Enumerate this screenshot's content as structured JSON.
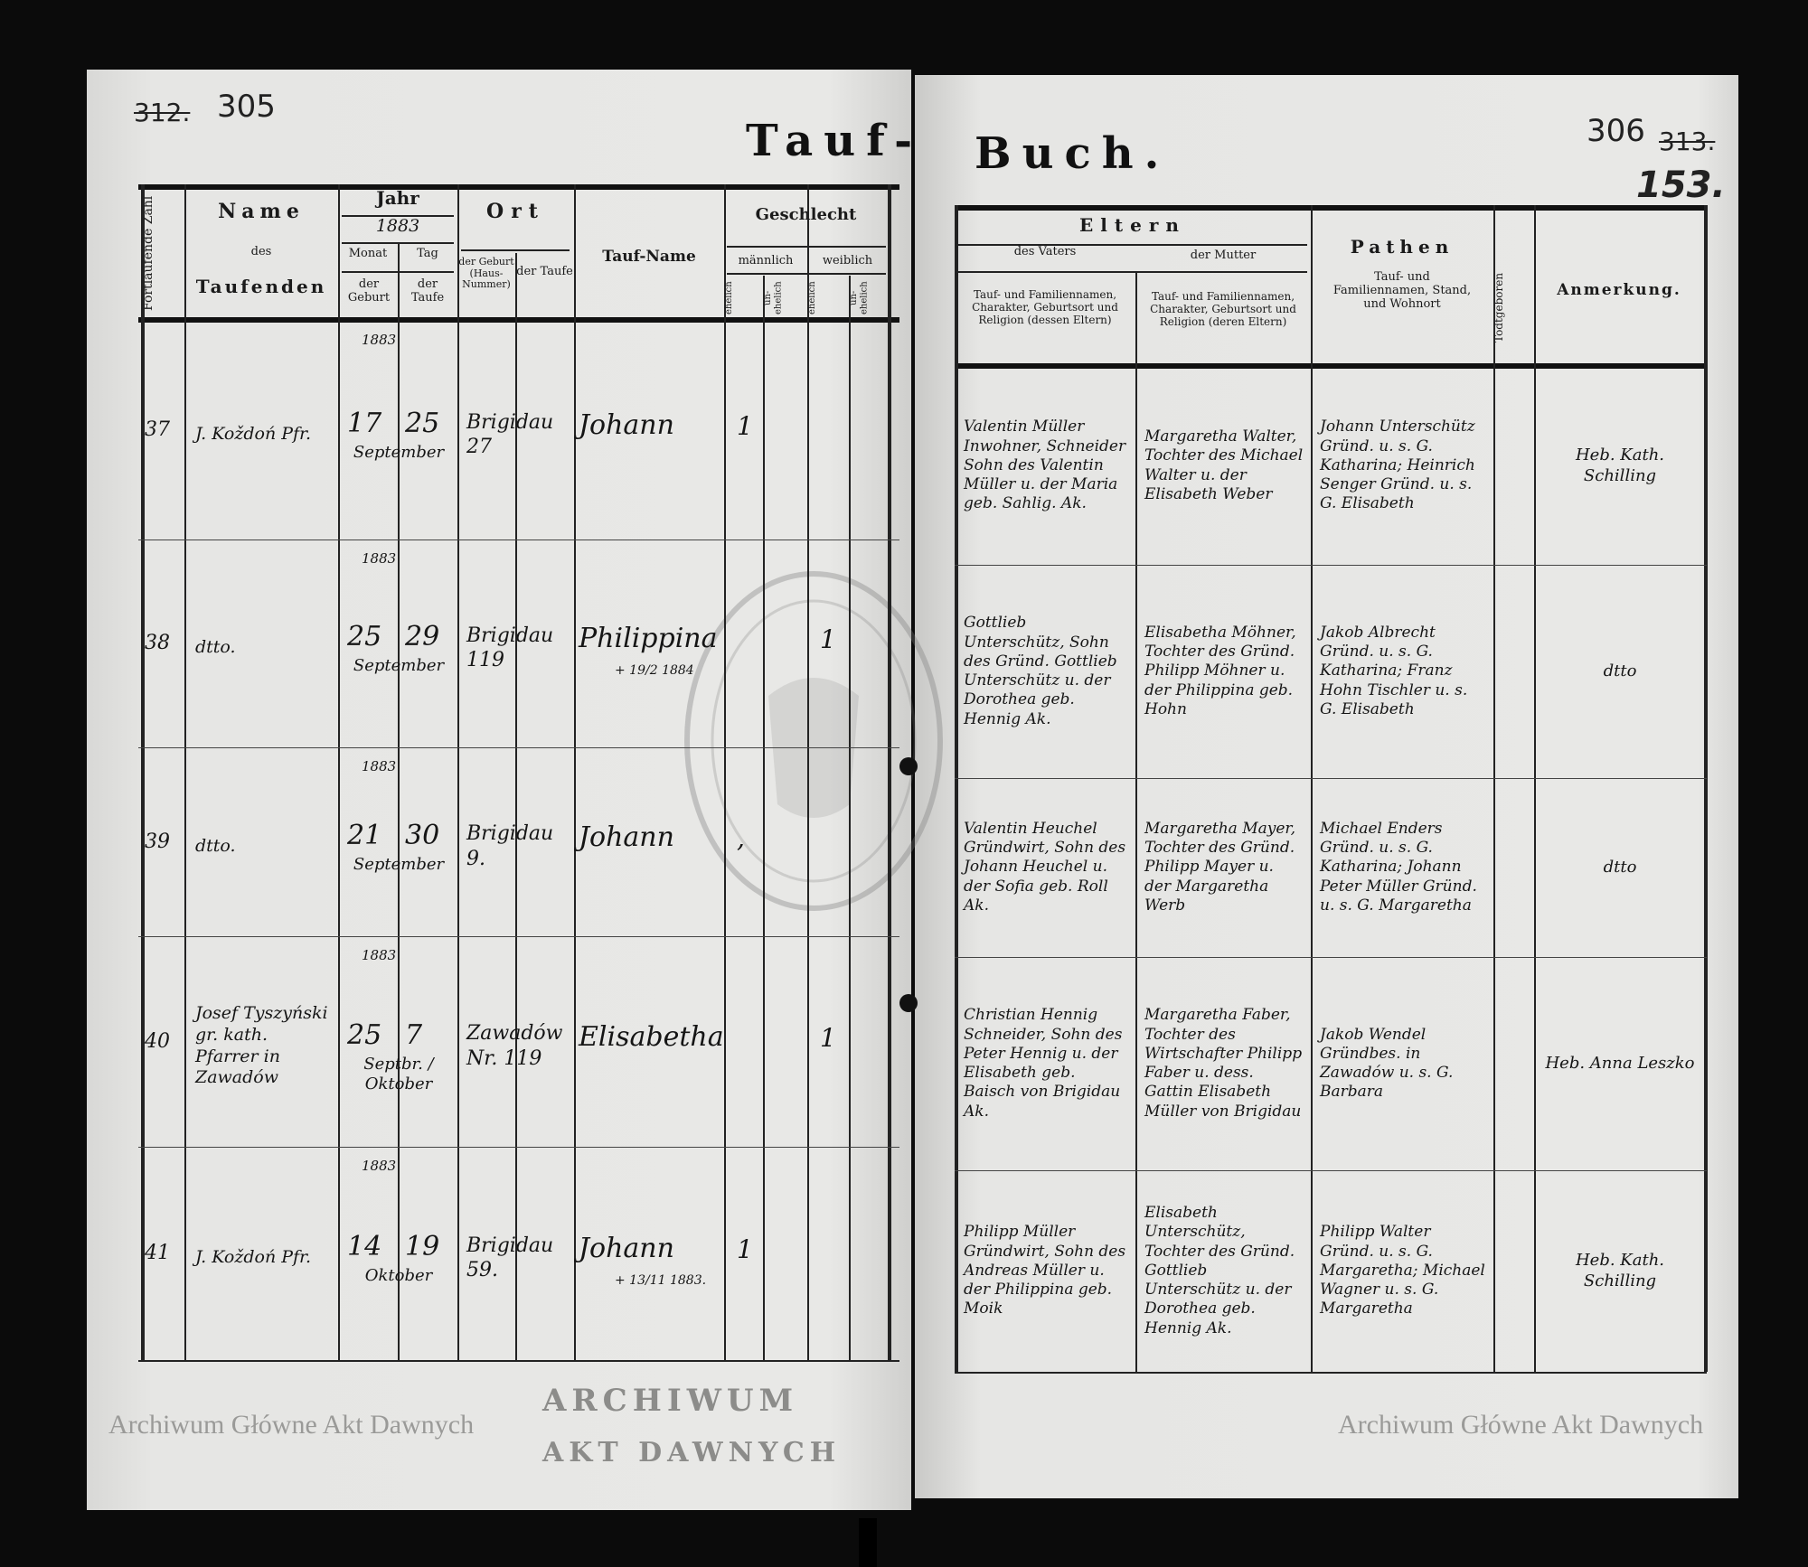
{
  "page_numbers": {
    "left_struck": "312.",
    "left": "305",
    "right": "306",
    "right_struck": "313.",
    "folio": "153."
  },
  "title": {
    "left": "Tauf-",
    "right": "Buch."
  },
  "watermark": "Archiwum Główne Akt Dawnych",
  "stamp": {
    "top": "ARCHIWUM",
    "bottom": "AKT DAWNYCH"
  },
  "headers": {
    "left": {
      "number": "Fortlaufende Zahl",
      "name_1": "Name",
      "name_2": "des",
      "name_3": "Taufenden",
      "jahr": "Jahr",
      "jahr_value": "1883",
      "monat": "Monat",
      "tag": "Tag",
      "der_geburt": "der Geburt",
      "der_taufe": "der Taufe",
      "ort": "Ort",
      "ort_geburt": "der Geburt (Haus-Nummer)",
      "ort_taufe": "der Taufe",
      "taufname": "Tauf-Name",
      "geschlecht": "Geschlecht",
      "maennlich": "männlich",
      "weiblich": "weiblich",
      "ehelich": "ehelich",
      "unehelich": "un-ehelich"
    },
    "right": {
      "eltern": "Eltern",
      "vater": "des Vaters",
      "mutter": "der Mutter",
      "vater_desc": "Tauf- und Familiennamen, Charakter, Geburtsort und Religion (dessen Eltern)",
      "mutter_desc": "Tauf- und Familiennamen, Charakter, Geburtsort und Religion (deren Eltern)",
      "pathen": "Pathen",
      "pathen_desc": "Tauf- und Familiennamen, Stand, und Wohnort",
      "todtgeboren": "Todtgeboren",
      "anmerkung": "Anmerkung."
    }
  },
  "rows": [
    {
      "number": "37",
      "year": "1883",
      "name": "J. Koždoń Pfr.",
      "geburt": "17",
      "taufe": "25",
      "month": "September",
      "ort": "Brigidau 27",
      "taufname": "Johann",
      "death_note": "",
      "sex_col": 0,
      "mark": "1",
      "father": "Valentin Müller Inwohner, Schneider Sohn des Valentin Müller u. der Maria geb. Sahlig. Ak.",
      "mother": "Margaretha Walter, Tochter des Michael Walter u. der Elisabeth Weber",
      "pathen": "Johann Unterschütz Gründ. u. s. G. Katharina; Heinrich Senger Gründ. u. s. G. Elisabeth",
      "anmerkung": "Heb. Kath. Schilling"
    },
    {
      "number": "38",
      "year": "1883",
      "name": "dtto.",
      "geburt": "25",
      "taufe": "29",
      "month": "September",
      "ort": "Brigidau 119",
      "taufname": "Philippina",
      "death_note": "+ 19/2 1884",
      "sex_col": 2,
      "mark": "1",
      "father": "Gottlieb Unterschütz, Sohn des Gründ. Gottlieb Unterschütz u. der Dorothea geb. Hennig Ak.",
      "mother": "Elisabetha Möhner, Tochter des Gründ. Philipp Möhner u. der Philippina geb. Hohn",
      "pathen": "Jakob Albrecht Gründ. u. s. G. Katharina; Franz Hohn Tischler u. s. G. Elisabeth",
      "anmerkung": "dtto"
    },
    {
      "number": "39",
      "year": "1883",
      "name": "dtto.",
      "geburt": "21",
      "taufe": "30",
      "month": "September",
      "ort": "Brigidau 9.",
      "taufname": "Johann",
      "death_note": "",
      "sex_col": 0,
      "mark": ",",
      "father": "Valentin Heuchel Gründwirt, Sohn des Johann Heuchel u. der Sofia geb. Roll Ak.",
      "mother": "Margaretha Mayer, Tochter des Gründ. Philipp Mayer u. der Margaretha Werb",
      "pathen": "Michael Enders Gründ. u. s. G. Katharina; Johann Peter Müller Gründ. u. s. G. Margaretha",
      "anmerkung": "dtto"
    },
    {
      "number": "40",
      "year": "1883",
      "name": "Josef Tyszyński gr. kath. Pfarrer in Zawadów",
      "geburt": "25",
      "taufe": "7",
      "month": "Septbr. / Oktober",
      "ort": "Zawadów Nr. 119",
      "taufname": "Elisabetha",
      "death_note": "",
      "sex_col": 2,
      "mark": "1",
      "father": "Christian Hennig Schneider, Sohn des Peter Hennig u. der Elisabeth geb. Baisch von Brigidau Ak.",
      "mother": "Margaretha Faber, Tochter des Wirtschafter Philipp Faber u. dess. Gattin Elisabeth Müller von Brigidau",
      "pathen": "Jakob Wendel Gründbes. in Zawadów u. s. G. Barbara",
      "anmerkung": "Heb. Anna Leszko"
    },
    {
      "number": "41",
      "year": "1883",
      "name": "J. Koždoń Pfr.",
      "geburt": "14",
      "taufe": "19",
      "month": "Oktober",
      "ort": "Brigidau 59.",
      "taufname": "Johann",
      "death_note": "+ 13/11 1883.",
      "sex_col": 0,
      "mark": "1",
      "father": "Philipp Müller Gründwirt, Sohn des Andreas Müller u. der Philippina geb. Moik",
      "mother": "Elisabeth Unterschütz, Tochter des Gründ. Gottlieb Unterschütz u. der Dorothea geb. Hennig Ak.",
      "pathen": "Philipp Walter Gründ. u. s. G. Margaretha; Michael Wagner u. s. G. Margaretha",
      "anmerkung": "Heb. Kath. Schilling"
    }
  ]
}
